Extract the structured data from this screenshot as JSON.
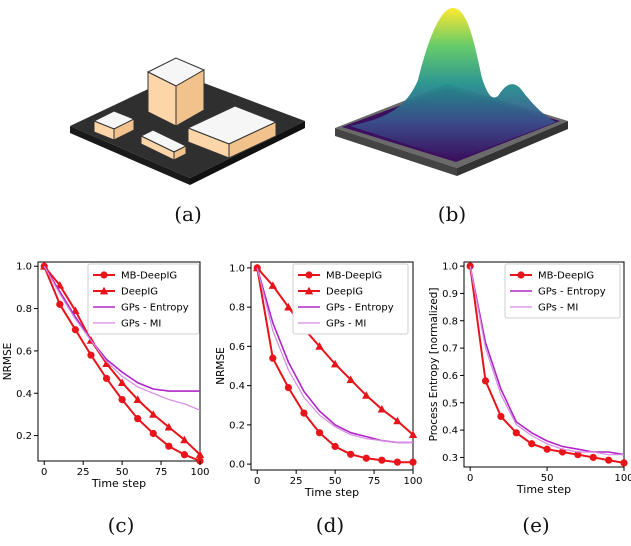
{
  "panels": {
    "a": {
      "caption": "(a)"
    },
    "b": {
      "caption": "(b)"
    },
    "c": {
      "caption": "(c)"
    },
    "d": {
      "caption": "(d)"
    },
    "e": {
      "caption": "(e)"
    }
  },
  "chart_data": [
    {
      "id": "c",
      "type": "line",
      "xlabel": "Time step",
      "ylabel": "NRMSE",
      "xlim": [
        -4,
        100
      ],
      "ylim": [
        0.08,
        1.02
      ],
      "xticks": [
        0,
        25,
        50,
        75,
        100
      ],
      "yticks": [
        0.2,
        0.4,
        0.6,
        0.8,
        1.0
      ],
      "ytick_labels": [
        "0.2",
        "0.4",
        "0.6",
        "0.8",
        "1.0"
      ],
      "legend": "top-right",
      "series": [
        {
          "name": "MB-DeepIG",
          "color": "#e8141a",
          "marker": "circle",
          "width": 2,
          "x": [
            0,
            10,
            20,
            30,
            40,
            50,
            60,
            70,
            80,
            90,
            100
          ],
          "y": [
            1.0,
            0.82,
            0.7,
            0.58,
            0.47,
            0.37,
            0.28,
            0.21,
            0.15,
            0.11,
            0.08
          ]
        },
        {
          "name": "DeepIG",
          "color": "#e8141a",
          "marker": "triangle",
          "width": 2,
          "x": [
            0,
            10,
            20,
            30,
            40,
            50,
            60,
            70,
            80,
            90,
            100
          ],
          "y": [
            1.0,
            0.91,
            0.79,
            0.65,
            0.54,
            0.45,
            0.37,
            0.3,
            0.24,
            0.18,
            0.11
          ]
        },
        {
          "name": "GPs - Entropy",
          "color": "#b026c8",
          "marker": "none",
          "width": 1.6,
          "x": [
            0,
            10,
            20,
            30,
            40,
            50,
            60,
            70,
            80,
            90,
            100
          ],
          "y": [
            1.0,
            0.88,
            0.76,
            0.65,
            0.56,
            0.5,
            0.45,
            0.42,
            0.41,
            0.41,
            0.41
          ]
        },
        {
          "name": "GPs - MI",
          "color": "#d58be3",
          "marker": "none",
          "width": 1.2,
          "x": [
            0,
            10,
            20,
            30,
            40,
            50,
            60,
            70,
            80,
            90,
            100
          ],
          "y": [
            1.0,
            0.87,
            0.75,
            0.65,
            0.55,
            0.48,
            0.43,
            0.4,
            0.37,
            0.35,
            0.32
          ]
        }
      ]
    },
    {
      "id": "d",
      "type": "line",
      "xlabel": "Time step",
      "ylabel": "NRMSE",
      "xlim": [
        -4,
        100
      ],
      "ylim": [
        -0.03,
        1.03
      ],
      "xticks": [
        0,
        25,
        50,
        75,
        100
      ],
      "yticks": [
        0.0,
        0.2,
        0.4,
        0.6,
        0.8,
        1.0
      ],
      "ytick_labels": [
        "0.0",
        "0.2",
        "0.4",
        "0.6",
        "0.8",
        "1.0"
      ],
      "legend": "top-right",
      "series": [
        {
          "name": "MB-DeepIG",
          "color": "#e8141a",
          "marker": "circle",
          "width": 2,
          "x": [
            0,
            10,
            20,
            30,
            40,
            50,
            60,
            70,
            80,
            90,
            100
          ],
          "y": [
            1.0,
            0.54,
            0.39,
            0.26,
            0.16,
            0.09,
            0.05,
            0.03,
            0.02,
            0.01,
            0.01
          ]
        },
        {
          "name": "DeepIG",
          "color": "#e8141a",
          "marker": "triangle",
          "width": 2,
          "x": [
            0,
            10,
            20,
            30,
            40,
            50,
            60,
            70,
            80,
            90,
            100
          ],
          "y": [
            1.0,
            0.91,
            0.8,
            0.69,
            0.6,
            0.51,
            0.43,
            0.35,
            0.28,
            0.22,
            0.15
          ]
        },
        {
          "name": "GPs - Entropy",
          "color": "#b026c8",
          "marker": "none",
          "width": 1.6,
          "x": [
            0,
            10,
            20,
            30,
            40,
            50,
            60,
            70,
            80,
            90,
            100
          ],
          "y": [
            1.0,
            0.72,
            0.52,
            0.37,
            0.27,
            0.2,
            0.16,
            0.14,
            0.12,
            0.11,
            0.11
          ]
        },
        {
          "name": "GPs - MI",
          "color": "#d58be3",
          "marker": "none",
          "width": 1.2,
          "x": [
            0,
            10,
            20,
            30,
            40,
            50,
            60,
            70,
            80,
            90,
            100
          ],
          "y": [
            1.0,
            0.68,
            0.48,
            0.34,
            0.25,
            0.19,
            0.15,
            0.13,
            0.12,
            0.11,
            0.11
          ]
        }
      ]
    },
    {
      "id": "e",
      "type": "line",
      "xlabel": "Time step",
      "ylabel": "Process Entropy [normalized]",
      "xlim": [
        -4,
        100
      ],
      "ylim": [
        0.265,
        1.015
      ],
      "xticks": [
        0,
        50,
        100
      ],
      "yticks": [
        0.3,
        0.4,
        0.5,
        0.6,
        0.7,
        0.8,
        0.9,
        1.0
      ],
      "ytick_labels": [
        "0.3",
        "0.4",
        "0.5",
        "0.6",
        "0.7",
        "0.8",
        "0.9",
        "1.0"
      ],
      "legend": "top-right",
      "series": [
        {
          "name": "MB-DeepIG",
          "color": "#e8141a",
          "marker": "circle",
          "width": 2,
          "x": [
            0,
            10,
            20,
            30,
            40,
            50,
            60,
            70,
            80,
            90,
            100
          ],
          "y": [
            1.0,
            0.58,
            0.45,
            0.39,
            0.35,
            0.33,
            0.32,
            0.31,
            0.3,
            0.29,
            0.28
          ]
        },
        {
          "name": "GPs - Entropy",
          "color": "#b026c8",
          "marker": "none",
          "width": 1.6,
          "x": [
            0,
            10,
            20,
            30,
            40,
            50,
            60,
            70,
            80,
            90,
            100
          ],
          "y": [
            1.0,
            0.72,
            0.55,
            0.43,
            0.39,
            0.36,
            0.34,
            0.33,
            0.32,
            0.32,
            0.31
          ]
        },
        {
          "name": "GPs - MI",
          "color": "#d58be3",
          "marker": "none",
          "width": 1.2,
          "x": [
            0,
            10,
            20,
            30,
            40,
            50,
            60,
            70,
            80,
            90,
            100
          ],
          "y": [
            1.0,
            0.7,
            0.53,
            0.42,
            0.38,
            0.35,
            0.33,
            0.32,
            0.32,
            0.31,
            0.31
          ]
        }
      ]
    }
  ]
}
